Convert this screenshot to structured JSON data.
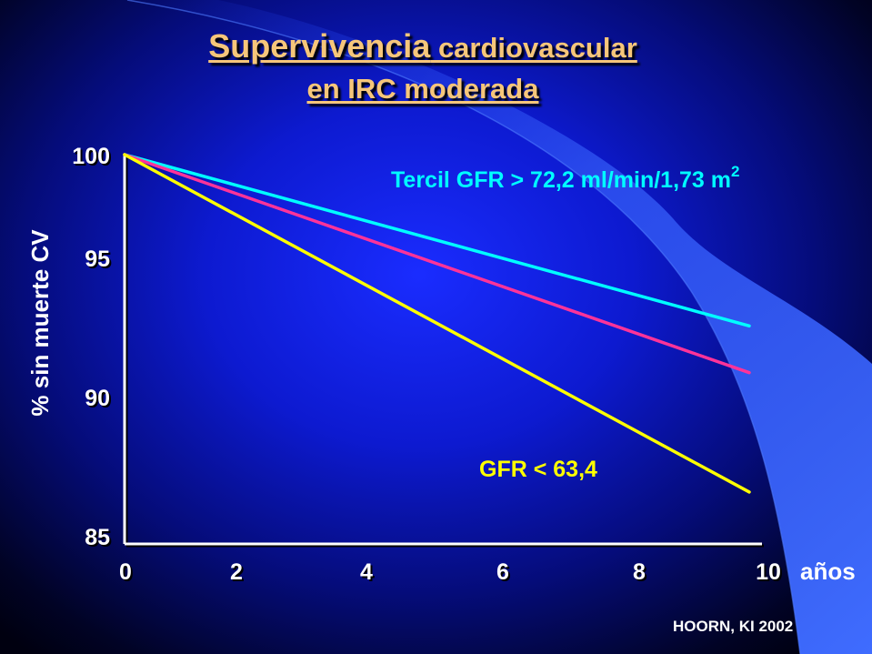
{
  "slide": {
    "title_part1": "Supervivencia",
    "title_part2": " cardiovascular",
    "title_line2": "en IRC moderada",
    "source": "HOORN, KI 2002",
    "colors": {
      "title": "#f6c67a",
      "background": "#0d1ad0",
      "accent_shape": "#3b62f5"
    }
  },
  "chart_data": {
    "type": "line",
    "xlabel": "años",
    "ylabel": "% sin muerte CV",
    "x_ticks": [
      0,
      2,
      4,
      6,
      8,
      10
    ],
    "y_ticks": [
      85,
      90,
      95,
      100
    ],
    "xlim": [
      0,
      10
    ],
    "ylim": [
      85,
      100
    ],
    "grid": false,
    "series": [
      {
        "name": "Tercil GFR > 72,2 ml/min/1,73 m",
        "name_superscript": "2",
        "color": "#00ffff",
        "x": [
          0,
          9.8
        ],
        "y": [
          100,
          93.4
        ]
      },
      {
        "name": "",
        "color": "#ff3399",
        "x": [
          0,
          9.8
        ],
        "y": [
          100,
          91.6
        ]
      },
      {
        "name": "GFR < 63,4",
        "color": "#ffff00",
        "x": [
          0,
          9.8
        ],
        "y": [
          100,
          87.0
        ]
      }
    ]
  }
}
